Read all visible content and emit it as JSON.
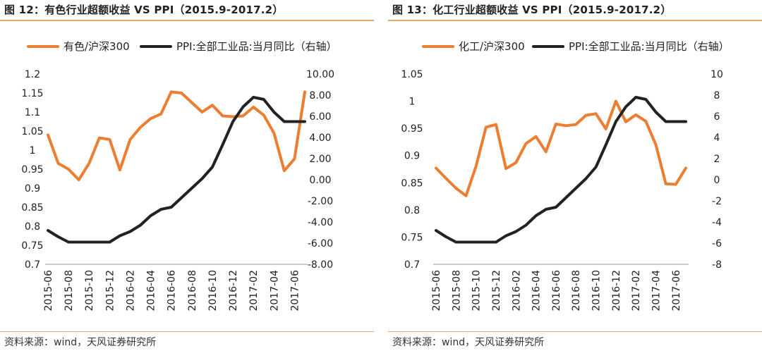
{
  "panels": [
    {
      "title": "图 12：有色行业超额收益 VS PPI（2015.9-2017.2）",
      "source": "资料来源：wind，天风证券研究所"
    },
    {
      "title": "图 13：化工行业超额收益 VS PPI（2015.9-2017.2）",
      "source": "资料来源：wind，天风证券研究所"
    }
  ],
  "chart_data": [
    {
      "type": "line",
      "x": [
        "2015-06",
        "2015-07",
        "2015-08",
        "2015-09",
        "2015-10",
        "2015-11",
        "2015-12",
        "2016-01",
        "2016-02",
        "2016-03",
        "2016-04",
        "2016-05",
        "2016-06",
        "2016-07",
        "2016-08",
        "2016-09",
        "2016-10",
        "2016-11",
        "2016-12",
        "2017-01",
        "2017-02",
        "2017-03",
        "2017-04",
        "2017-05",
        "2017-06",
        "2017-07"
      ],
      "x_tick_labels": [
        "2015-06",
        "2015-08",
        "2015-10",
        "2015-12",
        "2016-02",
        "2016-04",
        "2016-06",
        "2016-08",
        "2016-10",
        "2016-12",
        "2017-02",
        "2017-04",
        "2017-06"
      ],
      "y_left_ticks": [
        "0.7",
        "0.75",
        "0.8",
        "0.85",
        "0.9",
        "0.95",
        "1",
        "1.05",
        "1.1",
        "1.15",
        "1.2"
      ],
      "y_right_ticks": [
        "-8.00",
        "-6.00",
        "-4.00",
        "-2.00",
        "0.00",
        "2.00",
        "4.00",
        "6.00",
        "8.00",
        "10.00"
      ],
      "ylim_left": [
        0.7,
        1.2
      ],
      "ylim_right": [
        -8,
        10
      ],
      "grid": false,
      "legend_position": "top",
      "series": [
        {
          "name": "有色/沪深300",
          "axis": "left",
          "color": "#ed7d31",
          "values": [
            1.04,
            0.965,
            0.95,
            0.922,
            0.965,
            1.032,
            1.028,
            0.948,
            1.028,
            1.06,
            1.083,
            1.095,
            1.153,
            1.15,
            1.125,
            1.1,
            1.118,
            1.09,
            1.088,
            1.09,
            1.113,
            1.092,
            1.045,
            0.946,
            0.977,
            1.153
          ]
        },
        {
          "name": "PPI:全部工业品:当月同比（右轴）",
          "axis": "right",
          "color": "#222222",
          "values": [
            -4.8,
            -5.4,
            -5.9,
            -5.9,
            -5.9,
            -5.9,
            -5.9,
            -5.3,
            -4.9,
            -4.3,
            -3.4,
            -2.8,
            -2.6,
            -1.7,
            -0.8,
            0.1,
            1.2,
            3.3,
            5.5,
            6.9,
            7.8,
            7.6,
            6.4,
            5.5,
            5.5,
            5.5
          ]
        }
      ]
    },
    {
      "type": "line",
      "x": [
        "2015-06",
        "2015-07",
        "2015-08",
        "2015-09",
        "2015-10",
        "2015-11",
        "2015-12",
        "2016-01",
        "2016-02",
        "2016-03",
        "2016-04",
        "2016-05",
        "2016-06",
        "2016-07",
        "2016-08",
        "2016-09",
        "2016-10",
        "2016-11",
        "2016-12",
        "2017-01",
        "2017-02",
        "2017-03",
        "2017-04",
        "2017-05",
        "2017-06",
        "2017-07"
      ],
      "x_tick_labels": [
        "2015-06",
        "2015-08",
        "2015-10",
        "2015-12",
        "2016-02",
        "2016-04",
        "2016-06",
        "2016-08",
        "2016-10",
        "2016-12",
        "2017-02",
        "2017-04",
        "2017-06"
      ],
      "y_left_ticks": [
        "0.7",
        "0.75",
        "0.8",
        "0.85",
        "0.9",
        "0.95",
        "1",
        "1.05"
      ],
      "y_right_ticks": [
        "-8",
        "-6",
        "-4",
        "-2",
        "0",
        "2",
        "4",
        "6",
        "8",
        "10"
      ],
      "ylim_left": [
        0.7,
        1.05
      ],
      "ylim_right": [
        -8,
        10
      ],
      "grid": false,
      "legend_position": "top",
      "series": [
        {
          "name": "化工/沪深300",
          "axis": "left",
          "color": "#ed7d31",
          "values": [
            0.877,
            0.858,
            0.84,
            0.826,
            0.88,
            0.952,
            0.957,
            0.876,
            0.887,
            0.922,
            0.935,
            0.907,
            0.958,
            0.955,
            0.957,
            0.974,
            0.977,
            0.949,
            1.0,
            0.962,
            0.975,
            0.963,
            0.92,
            0.848,
            0.847,
            0.877
          ]
        },
        {
          "name": "PPI:全部工业品:当月同比（右轴）",
          "axis": "right",
          "color": "#222222",
          "values": [
            -4.8,
            -5.4,
            -5.9,
            -5.9,
            -5.9,
            -5.9,
            -5.9,
            -5.3,
            -4.9,
            -4.3,
            -3.4,
            -2.8,
            -2.6,
            -1.7,
            -0.8,
            0.1,
            1.2,
            3.3,
            5.5,
            6.9,
            7.8,
            7.6,
            6.4,
            5.5,
            5.5,
            5.5
          ]
        }
      ]
    }
  ]
}
